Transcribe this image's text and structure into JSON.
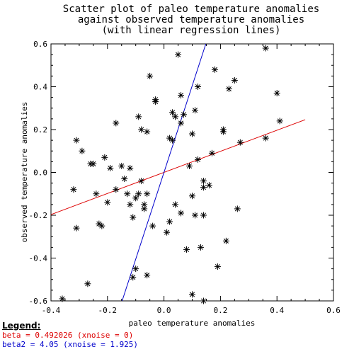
{
  "chart_data": {
    "type": "scatter",
    "title_lines": [
      "Scatter plot of paleo temperature anomalies",
      "against observed temperature anomalies",
      "(with linear regression lines)"
    ],
    "xlabel": "paleo temperature anomalies",
    "ylabel": "observed temperature anomalies",
    "xlim": [
      -0.4,
      0.6
    ],
    "ylim": [
      -0.6,
      0.6
    ],
    "xticks": [
      "-0.4",
      "-0.2",
      "0.0",
      "0.2",
      "0.4",
      "0.6"
    ],
    "yticks": [
      "-0.6",
      "-0.4",
      "-0.2",
      "0.0",
      "0.2",
      "0.4",
      "0.6"
    ],
    "xtick_values": [
      -0.4,
      -0.2,
      0.0,
      0.2,
      0.4,
      0.6
    ],
    "ytick_values": [
      -0.6,
      -0.4,
      -0.2,
      0.0,
      0.2,
      0.4,
      0.6
    ],
    "marker": "asterisk",
    "points": [
      [
        -0.36,
        -0.59
      ],
      [
        -0.27,
        -0.52
      ],
      [
        -0.31,
        -0.26
      ],
      [
        -0.32,
        -0.08
      ],
      [
        -0.31,
        0.15
      ],
      [
        -0.29,
        0.1
      ],
      [
        -0.26,
        0.04
      ],
      [
        -0.25,
        0.04
      ],
      [
        -0.24,
        -0.1
      ],
      [
        -0.23,
        -0.24
      ],
      [
        -0.22,
        -0.25
      ],
      [
        -0.21,
        0.07
      ],
      [
        -0.2,
        -0.14
      ],
      [
        -0.19,
        0.02
      ],
      [
        -0.17,
        0.23
      ],
      [
        -0.17,
        -0.08
      ],
      [
        -0.15,
        0.03
      ],
      [
        -0.14,
        -0.03
      ],
      [
        -0.13,
        -0.1
      ],
      [
        -0.12,
        0.02
      ],
      [
        -0.12,
        -0.15
      ],
      [
        -0.11,
        -0.21
      ],
      [
        -0.1,
        -0.12
      ],
      [
        -0.09,
        -0.1
      ],
      [
        -0.09,
        0.26
      ],
      [
        -0.08,
        0.2
      ],
      [
        -0.08,
        -0.04
      ],
      [
        -0.07,
        -0.15
      ],
      [
        -0.07,
        -0.17
      ],
      [
        -0.06,
        -0.1
      ],
      [
        -0.06,
        0.19
      ],
      [
        -0.05,
        0.45
      ],
      [
        -0.04,
        -0.25
      ],
      [
        -0.03,
        0.33
      ],
      [
        -0.03,
        0.34
      ],
      [
        -0.06,
        -0.48
      ],
      [
        -0.1,
        -0.45
      ],
      [
        -0.11,
        -0.49
      ],
      [
        0.01,
        -0.28
      ],
      [
        0.02,
        -0.23
      ],
      [
        0.02,
        0.16
      ],
      [
        0.03,
        0.28
      ],
      [
        0.04,
        0.26
      ],
      [
        0.04,
        -0.15
      ],
      [
        0.05,
        0.55
      ],
      [
        0.06,
        0.36
      ],
      [
        0.06,
        0.23
      ],
      [
        0.07,
        0.27
      ],
      [
        0.06,
        -0.19
      ],
      [
        0.08,
        -0.36
      ],
      [
        0.09,
        0.03
      ],
      [
        0.1,
        -0.11
      ],
      [
        0.1,
        0.18
      ],
      [
        0.11,
        0.29
      ],
      [
        0.11,
        -0.2
      ],
      [
        0.12,
        0.4
      ],
      [
        0.12,
        0.06
      ],
      [
        0.14,
        -0.04
      ],
      [
        0.14,
        -0.07
      ],
      [
        0.14,
        -0.2
      ],
      [
        0.13,
        -0.35
      ],
      [
        0.16,
        -0.06
      ],
      [
        0.17,
        0.09
      ],
      [
        0.18,
        0.48
      ],
      [
        0.19,
        -0.44
      ],
      [
        0.21,
        0.2
      ],
      [
        0.21,
        0.19
      ],
      [
        0.22,
        -0.32
      ],
      [
        0.23,
        0.39
      ],
      [
        0.25,
        0.43
      ],
      [
        0.26,
        -0.17
      ],
      [
        0.27,
        0.14
      ],
      [
        0.36,
        0.58
      ],
      [
        0.36,
        0.16
      ],
      [
        0.4,
        0.37
      ],
      [
        0.41,
        0.24
      ],
      [
        0.1,
        -0.57
      ],
      [
        0.14,
        -0.6
      ],
      [
        0.03,
        0.15
      ]
    ],
    "regression_lines": [
      {
        "label": "beta = 0.492026 (xnoise = 0)",
        "slope": 0.492026,
        "intercept": 0.0,
        "color": "#dd0000"
      },
      {
        "label": "beta2 = 4.05 (xnoise = 1.925)",
        "slope": 4.05,
        "intercept": 0.0,
        "color": "#0000cc"
      }
    ]
  },
  "legend": {
    "title": "Legend:"
  }
}
